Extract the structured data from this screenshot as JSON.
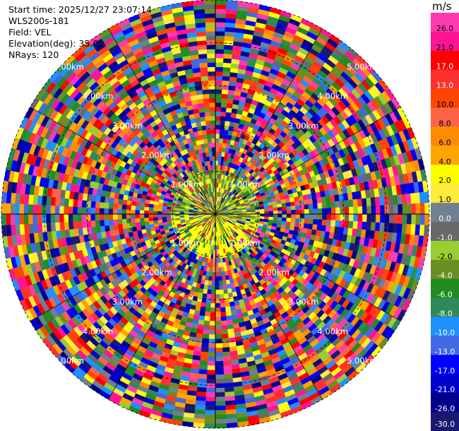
{
  "header": {
    "start_time": "Start time: 2025/12/27 23:07:14",
    "instrument": "WLS200s-181",
    "field": "Field: VEL",
    "elevation": "Elevation(deg): 35.00",
    "nrays": "NRays: 120"
  },
  "colorbar": {
    "unit": "m/s",
    "labels": [
      "26.0",
      "21.0",
      "17.0",
      "13.0",
      "10.0",
      "8.0",
      "6.0",
      "4.0",
      "2.0",
      "1.0",
      "0.0",
      "-1.0",
      "-2.0",
      "-4.0",
      "-6.0",
      "-8.0",
      "-10.0",
      "-13.0",
      "-17.0",
      "-21.0",
      "-26.0",
      "-30.0"
    ],
    "colors": [
      "#ff3ab0",
      "#ff1493",
      "#ff0000",
      "#ff3030",
      "#ff4500",
      "#ff6347",
      "#ff8c00",
      "#ffa500",
      "#ffff00",
      "#ffeb3b",
      "#708090",
      "#696969",
      "#9acd32",
      "#6b8e23",
      "#228b22",
      "#2e8b57",
      "#1e90ff",
      "#4169e1",
      "#0000ff",
      "#0000cd",
      "#00008b",
      "#191970"
    ],
    "label_colors": [
      "#000000",
      "#000000",
      "#ffffff",
      "#ffffff",
      "#000000",
      "#000000",
      "#000000",
      "#000000",
      "#000000",
      "#000000",
      "#ffffff",
      "#ffffff",
      "#000000",
      "#ffffff",
      "#ffffff",
      "#ffffff",
      "#ffffff",
      "#ffffff",
      "#ffffff",
      "#ffffff",
      "#ffffff",
      "#ffffff"
    ]
  },
  "chart_data": {
    "type": "heatmap",
    "title": "",
    "field": "VEL",
    "units": "m/s",
    "nrays": 120,
    "max_range_km": 5.0,
    "range_ring_labels": [
      "1.00km",
      "2.00km",
      "3.00km",
      "4.00km",
      "5.00km"
    ],
    "range_rings_km": [
      1,
      2,
      3,
      4,
      5
    ],
    "value_range": [
      -30.0,
      26.0
    ],
    "grid": true
  }
}
